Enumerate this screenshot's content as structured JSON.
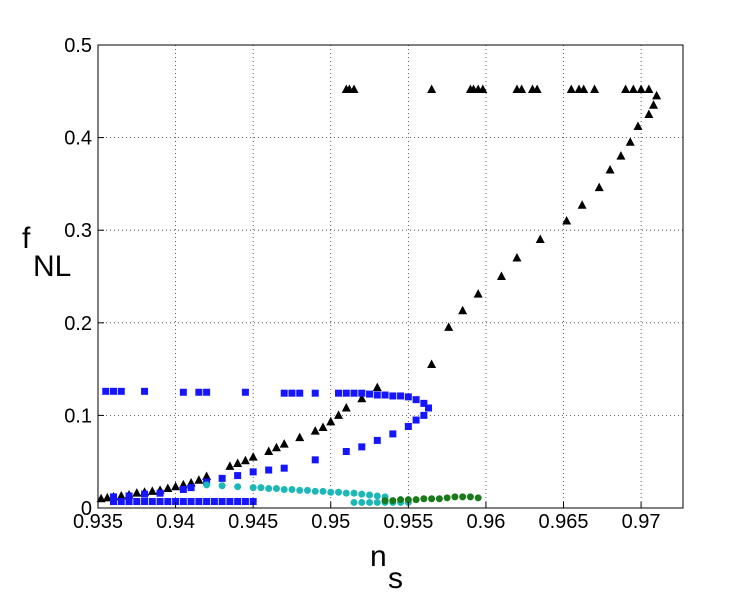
{
  "chart_data": {
    "type": "scatter",
    "xlabel": "n",
    "xlabel_sub": "s",
    "ylabel": "f",
    "ylabel_sub": "NL",
    "xlim": [
      0.935,
      0.9727
    ],
    "ylim": [
      0,
      0.5
    ],
    "xticks": [
      0.935,
      0.94,
      0.945,
      0.95,
      0.955,
      0.96,
      0.965,
      0.97
    ],
    "yticks": [
      0,
      0.1,
      0.2,
      0.3,
      0.4,
      0.5
    ],
    "grid": true,
    "series": [
      {
        "color": "#000000",
        "marker": "triangle",
        "x": [
          0.9352,
          0.9356,
          0.936,
          0.9365,
          0.937,
          0.9375,
          0.938,
          0.9385,
          0.939,
          0.9395,
          0.94,
          0.9405,
          0.941,
          0.9415,
          0.942,
          0.9435,
          0.944,
          0.9445,
          0.945,
          0.946,
          0.9465,
          0.947,
          0.948,
          0.949,
          0.9495,
          0.95,
          0.9505,
          0.951,
          0.952,
          0.953,
          0.9565,
          0.9576,
          0.9585,
          0.9595,
          0.961,
          0.962,
          0.9635,
          0.9652,
          0.9662,
          0.9673,
          0.968,
          0.9687,
          0.9693,
          0.9698,
          0.9705,
          0.9708,
          0.971,
          0.951,
          0.9512,
          0.9515,
          0.9565,
          0.959,
          0.9592,
          0.9595,
          0.9598,
          0.962,
          0.9623,
          0.963,
          0.9633,
          0.9655,
          0.966,
          0.9663,
          0.967,
          0.969,
          0.9695,
          0.97,
          0.9705
        ],
        "values": [
          0.01,
          0.011,
          0.012,
          0.013,
          0.014,
          0.016,
          0.017,
          0.018,
          0.019,
          0.021,
          0.023,
          0.025,
          0.027,
          0.03,
          0.034,
          0.045,
          0.048,
          0.051,
          0.055,
          0.061,
          0.065,
          0.069,
          0.076,
          0.083,
          0.087,
          0.093,
          0.1,
          0.108,
          0.118,
          0.13,
          0.155,
          0.195,
          0.213,
          0.231,
          0.25,
          0.27,
          0.29,
          0.31,
          0.327,
          0.346,
          0.365,
          0.38,
          0.395,
          0.412,
          0.425,
          0.435,
          0.445,
          0.452,
          0.452,
          0.452,
          0.452,
          0.452,
          0.452,
          0.452,
          0.452,
          0.452,
          0.452,
          0.452,
          0.452,
          0.452,
          0.452,
          0.452,
          0.452,
          0.452,
          0.452,
          0.452,
          0.452
        ]
      },
      {
        "color": "#1515ff",
        "marker": "square",
        "x": [
          0.9355,
          0.936,
          0.9365,
          0.938,
          0.9405,
          0.9415,
          0.942,
          0.9445,
          0.947,
          0.9475,
          0.948,
          0.949,
          0.9505,
          0.951,
          0.9515,
          0.952,
          0.9525,
          0.953,
          0.9535,
          0.954,
          0.9545,
          0.955,
          0.9555,
          0.956,
          0.9563,
          0.956,
          0.9555,
          0.955,
          0.954,
          0.953,
          0.952,
          0.951,
          0.949,
          0.947,
          0.946,
          0.945,
          0.944,
          0.943,
          0.942,
          0.941,
          0.9405,
          0.939,
          0.938,
          0.937,
          0.936,
          0.936,
          0.9365,
          0.937,
          0.9375,
          0.938,
          0.9385,
          0.939,
          0.9395,
          0.94,
          0.9405,
          0.941,
          0.9415,
          0.942,
          0.9425,
          0.943,
          0.9435,
          0.944,
          0.9445,
          0.945
        ],
        "values": [
          0.126,
          0.126,
          0.126,
          0.126,
          0.125,
          0.125,
          0.125,
          0.125,
          0.124,
          0.124,
          0.124,
          0.124,
          0.124,
          0.124,
          0.124,
          0.124,
          0.123,
          0.122,
          0.122,
          0.121,
          0.121,
          0.12,
          0.117,
          0.113,
          0.108,
          0.1,
          0.095,
          0.088,
          0.08,
          0.073,
          0.066,
          0.061,
          0.052,
          0.043,
          0.041,
          0.039,
          0.035,
          0.032,
          0.028,
          0.022,
          0.02,
          0.016,
          0.015,
          0.013,
          0.012,
          0.007,
          0.007,
          0.007,
          0.007,
          0.007,
          0.007,
          0.007,
          0.007,
          0.007,
          0.007,
          0.007,
          0.007,
          0.007,
          0.007,
          0.007,
          0.007,
          0.007,
          0.007,
          0.007
        ]
      },
      {
        "color": "#1cb8b8",
        "marker": "circle",
        "x": [
          0.942,
          0.943,
          0.944,
          0.945,
          0.9455,
          0.946,
          0.9465,
          0.947,
          0.9475,
          0.948,
          0.9485,
          0.949,
          0.9495,
          0.95,
          0.9505,
          0.951,
          0.9515,
          0.952,
          0.9525,
          0.953,
          0.9535,
          0.9515,
          0.952,
          0.9525,
          0.953,
          0.9535,
          0.954,
          0.9545,
          0.955
        ],
        "values": [
          0.025,
          0.024,
          0.023,
          0.022,
          0.022,
          0.021,
          0.021,
          0.02,
          0.02,
          0.019,
          0.019,
          0.018,
          0.018,
          0.017,
          0.017,
          0.016,
          0.016,
          0.015,
          0.014,
          0.013,
          0.012,
          0.006,
          0.006,
          0.006,
          0.006,
          0.006,
          0.006,
          0.006,
          0.006
        ]
      },
      {
        "color": "#1a7a1a",
        "marker": "circle",
        "x": [
          0.9535,
          0.954,
          0.9545,
          0.955,
          0.9555,
          0.956,
          0.9565,
          0.957,
          0.9575,
          0.958,
          0.9585,
          0.959,
          0.9595
        ],
        "values": [
          0.008,
          0.008,
          0.009,
          0.009,
          0.009,
          0.01,
          0.01,
          0.01,
          0.011,
          0.012,
          0.012,
          0.012,
          0.011
        ]
      }
    ]
  }
}
